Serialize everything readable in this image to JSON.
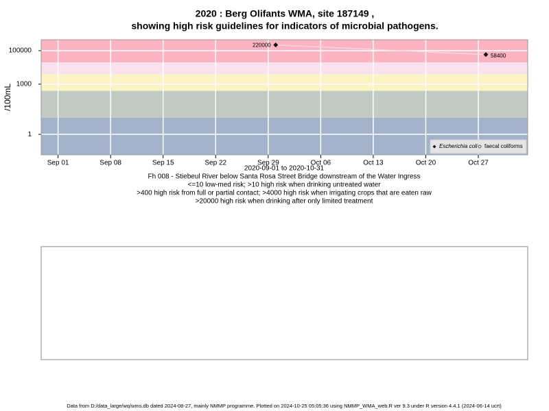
{
  "chart_data": {
    "type": "line",
    "title": [
      "2020 : Berg Olifants WMA, site 187149 ,",
      "showing high risk guidelines for indicators of microbial pathogens."
    ],
    "y_label": "/100mL",
    "x_label": "2020-09-01 to 2020-10-31",
    "subtitle": [
      "Fh 008 - Stiebeul River below Santa Rosa Street Bridge downstream of the Water Ingress",
      "<=10 low-med risk; >10 high risk when drinking untreated water",
      ">400 high risk from full or partial contact; >4000 high risk when irrigating crops that are eaten raw",
      ">20000 high risk when drinking after only limited treatment"
    ],
    "footer": "Data from D:/data_large/wq/wms.db dated 2024-08-27, mainly NMMP programme. Plotted on 2024-10-25 05:05:36 using NMMP_WMA_web.R ver 9.3 under R version 4.4.1 (2024-06-14 ucrt)",
    "x": [
      "2020-09-30",
      "2020-10-28"
    ],
    "series": [
      {
        "name": "Escherichia coli",
        "color": "#111111",
        "line_color": "#f4d6dc",
        "values": [
          220000,
          58400
        ]
      },
      {
        "name": "faecal coliforms",
        "color": "#555555",
        "values": [
          null,
          null
        ]
      }
    ],
    "bands": [
      {
        "from": 0.06,
        "to": 10,
        "color": "#a2b2cb"
      },
      {
        "from": 10,
        "to": 400,
        "color": "#c2cbc2"
      },
      {
        "from": 400,
        "to": 4000,
        "color": "#fbf3c3"
      },
      {
        "from": 4000,
        "to": 20000,
        "color": "#fbe0f0"
      },
      {
        "from": 20000,
        "to": 450000,
        "color": "#fbb4c0"
      }
    ],
    "ylog": true,
    "ylim": [
      0.06,
      450000
    ],
    "yticks": [
      1,
      1000,
      100000
    ],
    "xlim": [
      "2020-08-29T18:00:00Z",
      "2020-11-02T14:00:00Z"
    ],
    "xticks": [
      {
        "value": "2020-09-01",
        "label": "Sep 01"
      },
      {
        "value": "2020-09-08",
        "label": "Sep 08"
      },
      {
        "value": "2020-09-15",
        "label": "Sep 15"
      },
      {
        "value": "2020-09-22",
        "label": "Sep 22"
      },
      {
        "value": "2020-09-29",
        "label": "Sep 29"
      },
      {
        "value": "2020-10-06",
        "label": "Oct 06"
      },
      {
        "value": "2020-10-13",
        "label": "Oct 13"
      },
      {
        "value": "2020-10-20",
        "label": "Oct 20"
      },
      {
        "value": "2020-10-27",
        "label": "Oct 27"
      }
    ],
    "grid": true,
    "legend": "bottom-right"
  }
}
